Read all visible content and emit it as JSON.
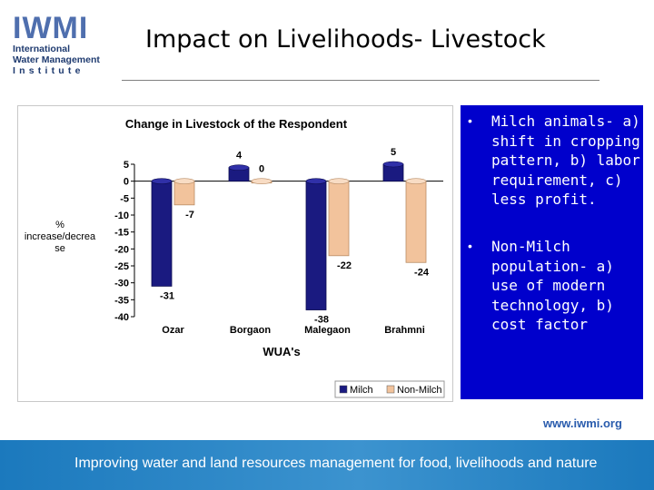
{
  "logo": {
    "big": "IWMI",
    "line1": "International",
    "line2": "Water Management",
    "line3": "Institute"
  },
  "slide": {
    "title": "Impact on Livelihoods- Livestock"
  },
  "bullets": [
    "Milch animals- a) shift in cropping pattern, b) labor requirement, c) less profit.",
    "Non-Milch population- a) use of modern technology, b) cost factor"
  ],
  "footer": {
    "url": "www.iwmi.org",
    "tagline": "Improving water and land resources management for food, livelihoods and nature"
  },
  "chart_data": {
    "type": "bar",
    "title": "Change in Livestock of the Respondent",
    "xlabel": "WUA's",
    "ylabel": "% increase/decrease",
    "categories": [
      "Ozar",
      "Borgaon",
      "Malegaon",
      "Brahmni"
    ],
    "series": [
      {
        "name": "Milch",
        "values": [
          -31,
          4,
          -38,
          5
        ],
        "labels": [
          "-31",
          "4",
          "-38",
          "5"
        ]
      },
      {
        "name": "Non-Milch",
        "values": [
          -7,
          0,
          -22,
          -24
        ],
        "labels": [
          "-7",
          "0",
          "-22",
          "-24"
        ]
      }
    ],
    "yticks": [
      5,
      0,
      -5,
      -10,
      -15,
      -20,
      -25,
      -30,
      -35,
      -40
    ],
    "ylim": [
      -40,
      5
    ],
    "legend_position": "bottom-right",
    "grid": false,
    "colors": {
      "Milch": "#1a1a80",
      "Non-Milch": "#f2c39c"
    }
  }
}
